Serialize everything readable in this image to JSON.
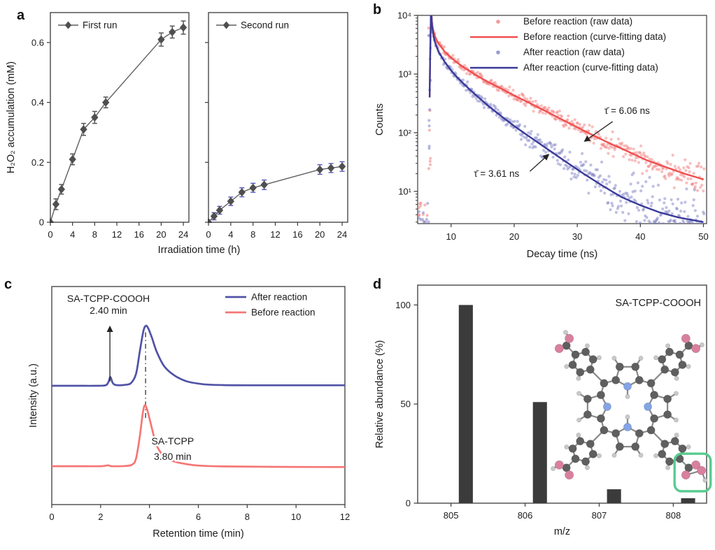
{
  "figure": {
    "background": "#ffffff",
    "axis_color": "#3a3a3a",
    "text_color": "#1c1c1c"
  },
  "chart_data": [
    {
      "panel": "a",
      "type": "line",
      "xlabel": "Irradiation time (h)",
      "ylabel": "H₂O₂ accumulation (mM)",
      "xlim": [
        0,
        25
      ],
      "ylim": [
        0,
        0.7
      ],
      "xticks": [
        0,
        4,
        8,
        12,
        16,
        20,
        24
      ],
      "yticks": [
        "0",
        "0.2",
        "0.4",
        "0.6"
      ],
      "ytick_values": [
        0,
        0.2,
        0.4,
        0.6
      ],
      "series": [
        {
          "name": "First run",
          "x": [
            0,
            1,
            2,
            4,
            6,
            8,
            10,
            20,
            22,
            24
          ],
          "y": [
            0,
            0.06,
            0.11,
            0.21,
            0.31,
            0.35,
            0.4,
            0.61,
            0.635,
            0.65
          ],
          "yerr": [
            0,
            0.018,
            0.016,
            0.018,
            0.02,
            0.02,
            0.018,
            0.022,
            0.02,
            0.022
          ],
          "marker": "diamond",
          "marker_color": "#4f4f4f",
          "line_color": "#5f5f5f",
          "err_color": "#4f4f4f"
        },
        {
          "name": "Second run",
          "x": [
            0,
            1,
            2,
            4,
            6,
            8,
            10,
            20,
            22,
            24
          ],
          "y": [
            0,
            0.02,
            0.04,
            0.07,
            0.1,
            0.115,
            0.125,
            0.176,
            0.181,
            0.186
          ],
          "yerr": [
            0,
            0.012,
            0.013,
            0.014,
            0.015,
            0.015,
            0.016,
            0.016,
            0.015,
            0.016
          ],
          "marker": "diamond",
          "marker_color": "#4f4f4f",
          "line_color": "#5f5f5f",
          "err_color": "#5456b8"
        }
      ]
    },
    {
      "panel": "b",
      "type": "scatter",
      "xlabel": "Decay time (ns)",
      "ylabel": "Counts",
      "xlim": [
        4.7,
        50.5
      ],
      "ylog": true,
      "ylim_log": [
        0.45,
        4
      ],
      "xticks": [
        10,
        20,
        30,
        40,
        50
      ],
      "ytick_decades": [
        1,
        2,
        3,
        4
      ],
      "ytick_labels": [
        "10¹",
        "10²",
        "10³",
        "10⁴"
      ],
      "legend": [
        {
          "label": "Before reaction (raw data)",
          "swatch": "dot",
          "color": "#f28080"
        },
        {
          "label": "Before reaction (curve-fitting data)",
          "swatch": "line",
          "color": "#f04f4f"
        },
        {
          "label": "After reaction (raw data)",
          "swatch": "dot",
          "color": "#8082c6"
        },
        {
          "label": "After reaction (curve-fitting data)",
          "swatch": "line",
          "color": "#3a3a99"
        }
      ],
      "series": [
        {
          "name": "Before reaction (curve-fitting data)",
          "line_color": "#f04f4f",
          "scatter_color": "#f28080",
          "x": [
            6.6,
            6.8,
            7.1,
            7.5,
            8,
            9,
            10,
            11,
            12,
            14,
            16,
            18,
            20,
            23,
            26,
            29,
            32,
            35,
            38,
            41,
            44,
            47,
            50
          ],
          "y": [
            400,
            9800,
            6000,
            4200,
            3300,
            2400,
            1900,
            1550,
            1300,
            950,
            720,
            560,
            430,
            300,
            205,
            140,
            96,
            67,
            48,
            34,
            26,
            20,
            16
          ]
        },
        {
          "name": "After reaction (curve-fitting data)",
          "line_color": "#3a3a99",
          "scatter_color": "#8082c6",
          "x": [
            6.6,
            6.8,
            7.1,
            7.5,
            8,
            9,
            10,
            11,
            12,
            14,
            16,
            18,
            20,
            22,
            25,
            28,
            31,
            34,
            37,
            40,
            43,
            46,
            50
          ],
          "y": [
            400,
            9800,
            5200,
            3300,
            2400,
            1600,
            1150,
            870,
            680,
            430,
            280,
            190,
            130,
            92,
            55,
            33,
            20,
            12.5,
            8,
            5.8,
            4.4,
            3.6,
            3.0
          ]
        }
      ],
      "annotations": [
        {
          "text": "τ̄ = 6.06 ns",
          "text_at": [
            34.3,
            210
          ],
          "arrow_from": [
            35.6,
            155
          ],
          "arrow_to": [
            31.2,
            72
          ]
        },
        {
          "text": "τ̄ = 3.61 ns",
          "text_at": [
            13.6,
            17.8
          ],
          "arrow_from": [
            22.5,
            22
          ],
          "arrow_to": [
            25.4,
            42
          ]
        }
      ]
    },
    {
      "panel": "c",
      "type": "line",
      "xlabel": "Retention time (min)",
      "ylabel": "Intensity (a.u.)",
      "xlim": [
        0,
        12
      ],
      "xticks": [
        0,
        2,
        4,
        6,
        8,
        10,
        12
      ],
      "legend": [
        {
          "label": "After reaction",
          "color": "#5053a6"
        },
        {
          "label": "Before reaction",
          "color": "#f57676"
        }
      ],
      "series": [
        {
          "name": "After reaction",
          "color": "#5053a6",
          "x": [
            0,
            1.0,
            1.8,
            2.2,
            2.32,
            2.4,
            2.5,
            2.65,
            3.0,
            3.25,
            3.45,
            3.6,
            3.75,
            3.85,
            3.95,
            4.1,
            4.3,
            4.6,
            5.0,
            5.5,
            6.2,
            7.0,
            8.0,
            10.0,
            12.0
          ],
          "y": [
            0.545,
            0.545,
            0.545,
            0.547,
            0.562,
            0.585,
            0.557,
            0.548,
            0.549,
            0.558,
            0.6,
            0.7,
            0.795,
            0.82,
            0.808,
            0.765,
            0.7,
            0.635,
            0.594,
            0.566,
            0.552,
            0.548,
            0.547,
            0.547,
            0.547
          ]
        },
        {
          "name": "Before reaction",
          "color": "#f57676",
          "x": [
            0,
            1.0,
            2.0,
            2.3,
            2.45,
            3.0,
            3.3,
            3.45,
            3.6,
            3.72,
            3.8,
            3.9,
            4.05,
            4.2,
            4.35,
            4.6,
            5.0,
            5.5,
            6.0,
            7.0,
            9.0,
            12.0
          ],
          "y": [
            0.176,
            0.176,
            0.176,
            0.18,
            0.176,
            0.177,
            0.184,
            0.212,
            0.31,
            0.415,
            0.455,
            0.437,
            0.372,
            0.305,
            0.258,
            0.222,
            0.198,
            0.186,
            0.179,
            0.175,
            0.173,
            0.172
          ]
        }
      ],
      "annotations": {
        "peak1_title": "SA-TCPP-COOOH",
        "peak1_time": "2.40 min",
        "peak1_x": 2.38,
        "peak2_title": "SA-TCPP",
        "peak2_time": "3.80 min",
        "peak2_x": 3.84
      }
    },
    {
      "panel": "d",
      "type": "bar",
      "title": "SA-TCPP-COOOH",
      "xlabel": "m/z",
      "ylabel": "Relative abundance (%)",
      "xlim": [
        804.55,
        808.45
      ],
      "ylim": [
        0,
        110
      ],
      "xticks": [
        805,
        806,
        807,
        808
      ],
      "yticks": [
        0,
        50,
        100
      ],
      "categories": [
        805.2,
        806.2,
        807.2,
        808.2
      ],
      "values": [
        100,
        51,
        7,
        2.5
      ],
      "bar_width": 0.19,
      "bar_color": "#3b3b3b",
      "molecule": {
        "label": "SA-TCPP-COOOH",
        "highlight_color": "#57cb8e",
        "atom_colors": {
          "C": "#5f5f5f",
          "H": "#c9c9c9",
          "N": "#84a4e6",
          "O": "#d8809d"
        }
      }
    }
  ]
}
